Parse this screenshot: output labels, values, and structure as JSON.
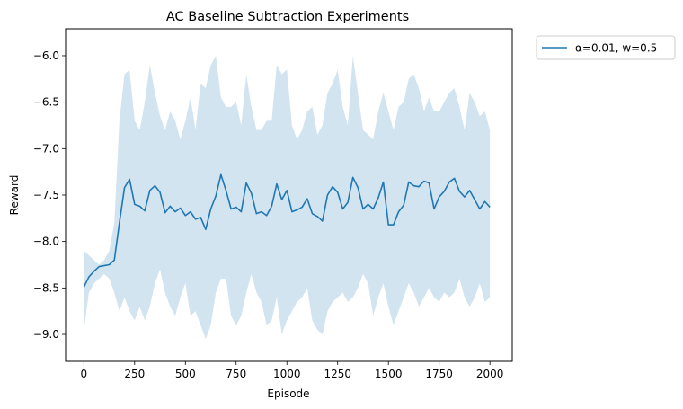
{
  "chart_data": {
    "type": "line",
    "title": "AC Baseline Subtraction Experiments",
    "xlabel": "Episode",
    "ylabel": "Reward",
    "xlim": [
      -90,
      2110
    ],
    "ylim": [
      -9.29,
      -5.71
    ],
    "xticks": [
      0,
      250,
      500,
      750,
      1000,
      1250,
      1500,
      1750,
      2000
    ],
    "xtick_labels": [
      "0",
      "250",
      "500",
      "750",
      "1000",
      "1250",
      "1500",
      "1750",
      "2000"
    ],
    "yticks": [
      -9.0,
      -8.5,
      -8.0,
      -7.5,
      -7.0,
      -6.5,
      -6.0
    ],
    "ytick_labels": [
      "−9.0",
      "−8.5",
      "−8.0",
      "−7.5",
      "−7.0",
      "−6.5",
      "−6.0"
    ],
    "grid": false,
    "legend_position": "outside-top-right",
    "series": [
      {
        "name": "α=0.01, w=0.5",
        "color": "#1f77b4",
        "band_color": "#1f77b4",
        "band_opacity": 0.2,
        "x": [
          0,
          25,
          50,
          75,
          100,
          125,
          150,
          175,
          200,
          225,
          250,
          275,
          300,
          325,
          350,
          375,
          400,
          425,
          450,
          475,
          500,
          525,
          550,
          575,
          600,
          625,
          650,
          675,
          700,
          725,
          750,
          775,
          800,
          825,
          850,
          875,
          900,
          925,
          950,
          975,
          1000,
          1025,
          1050,
          1075,
          1100,
          1125,
          1150,
          1175,
          1200,
          1225,
          1250,
          1275,
          1300,
          1325,
          1350,
          1375,
          1400,
          1425,
          1450,
          1475,
          1500,
          1525,
          1550,
          1575,
          1600,
          1625,
          1650,
          1675,
          1700,
          1725,
          1750,
          1775,
          1800,
          1825,
          1850,
          1875,
          1900,
          1925,
          1950,
          1975,
          2000
        ],
        "y": [
          -8.49,
          -8.38,
          -8.32,
          -8.27,
          -8.26,
          -8.25,
          -8.2,
          -7.8,
          -7.42,
          -7.33,
          -7.6,
          -7.62,
          -7.67,
          -7.45,
          -7.4,
          -7.47,
          -7.69,
          -7.62,
          -7.68,
          -7.64,
          -7.72,
          -7.68,
          -7.76,
          -7.74,
          -7.87,
          -7.65,
          -7.51,
          -7.28,
          -7.45,
          -7.65,
          -7.63,
          -7.68,
          -7.37,
          -7.48,
          -7.7,
          -7.68,
          -7.72,
          -7.62,
          -7.38,
          -7.55,
          -7.45,
          -7.68,
          -7.66,
          -7.63,
          -7.54,
          -7.7,
          -7.73,
          -7.78,
          -7.5,
          -7.41,
          -7.47,
          -7.65,
          -7.58,
          -7.31,
          -7.42,
          -7.65,
          -7.6,
          -7.65,
          -7.53,
          -7.36,
          -7.82,
          -7.82,
          -7.68,
          -7.61,
          -7.36,
          -7.4,
          -7.41,
          -7.35,
          -7.37,
          -7.65,
          -7.52,
          -7.46,
          -7.36,
          -7.32,
          -7.46,
          -7.52,
          -7.45,
          -7.55,
          -7.65,
          -7.57,
          -7.63
        ],
        "upper": [
          -8.1,
          -8.15,
          -8.2,
          -8.25,
          -8.2,
          -8.1,
          -7.8,
          -6.7,
          -6.2,
          -6.15,
          -6.7,
          -6.8,
          -6.5,
          -6.1,
          -6.4,
          -6.65,
          -6.8,
          -6.6,
          -6.7,
          -6.9,
          -6.7,
          -6.45,
          -6.8,
          -6.3,
          -6.35,
          -6.1,
          -6.0,
          -6.45,
          -6.55,
          -6.55,
          -6.5,
          -6.75,
          -6.2,
          -6.55,
          -6.8,
          -6.8,
          -6.7,
          -6.7,
          -6.1,
          -6.2,
          -6.15,
          -6.75,
          -6.9,
          -6.8,
          -6.6,
          -6.55,
          -6.85,
          -6.75,
          -6.4,
          -6.3,
          -6.15,
          -6.55,
          -6.75,
          -6.0,
          -6.4,
          -6.8,
          -6.85,
          -6.9,
          -6.6,
          -6.4,
          -6.6,
          -6.8,
          -6.55,
          -6.5,
          -6.25,
          -6.2,
          -6.35,
          -6.6,
          -6.45,
          -6.6,
          -6.6,
          -6.5,
          -6.4,
          -6.35,
          -6.55,
          -6.8,
          -6.4,
          -6.5,
          -6.65,
          -6.6,
          -6.8
        ],
        "lower": [
          -8.95,
          -8.55,
          -8.45,
          -8.4,
          -8.35,
          -8.4,
          -8.55,
          -8.75,
          -8.6,
          -8.75,
          -8.85,
          -8.7,
          -8.85,
          -8.7,
          -8.45,
          -8.3,
          -8.55,
          -8.7,
          -8.8,
          -8.6,
          -8.45,
          -8.8,
          -8.75,
          -8.9,
          -9.05,
          -8.9,
          -8.55,
          -8.4,
          -8.4,
          -8.8,
          -8.9,
          -8.8,
          -8.55,
          -8.35,
          -8.55,
          -8.65,
          -8.9,
          -8.85,
          -8.6,
          -9.0,
          -8.85,
          -8.75,
          -8.65,
          -8.6,
          -8.5,
          -8.85,
          -8.95,
          -9.0,
          -8.75,
          -8.65,
          -8.6,
          -8.55,
          -8.65,
          -8.6,
          -8.5,
          -8.35,
          -8.45,
          -8.8,
          -8.6,
          -8.45,
          -8.7,
          -8.9,
          -8.75,
          -8.6,
          -8.45,
          -8.55,
          -8.7,
          -8.6,
          -8.5,
          -8.6,
          -8.65,
          -8.55,
          -8.6,
          -8.55,
          -8.4,
          -8.6,
          -8.7,
          -8.6,
          -8.45,
          -8.65,
          -8.6
        ]
      }
    ]
  }
}
